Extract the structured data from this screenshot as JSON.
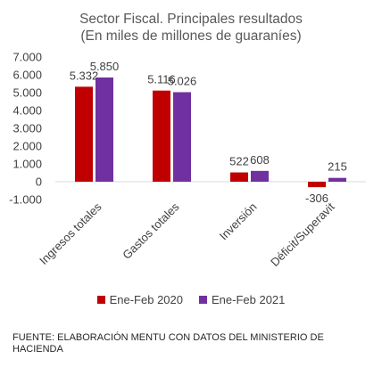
{
  "chart_data": {
    "type": "bar",
    "title_lines": [
      "Sector Fiscal. Principales resultados",
      "(En miles de millones  de guaraníes)"
    ],
    "categories": [
      "Ingresos totales",
      "Gastos totales",
      "Inversión",
      "Déficit/Superavit"
    ],
    "series": [
      {
        "name": "Ene-Feb 2020",
        "values": [
          5332,
          5116,
          522,
          -306
        ],
        "labels": [
          "5.332",
          "5.116",
          "522",
          "-306"
        ],
        "color": "#c00000"
      },
      {
        "name": "Ene-Feb 2021",
        "values": [
          5850,
          5026,
          608,
          215
        ],
        "labels": [
          "5.850",
          "5.026",
          "608",
          "215"
        ],
        "color": "#7030a0"
      }
    ],
    "ylim": [
      -1000,
      7000
    ],
    "yticks": [
      7000,
      6000,
      5000,
      4000,
      3000,
      2000,
      1000,
      0,
      -1000
    ],
    "ytick_labels": [
      "7.000",
      "6.000",
      "5.000",
      "4.000",
      "3.000",
      "2.000",
      "1.000",
      "0",
      "-1.000"
    ],
    "grid": false,
    "legend_position": "bottom"
  },
  "source_note": "FUENTE: ELABORACIÓN MENTU CON DATOS DEL MINISTERIO DE HACIENDA"
}
